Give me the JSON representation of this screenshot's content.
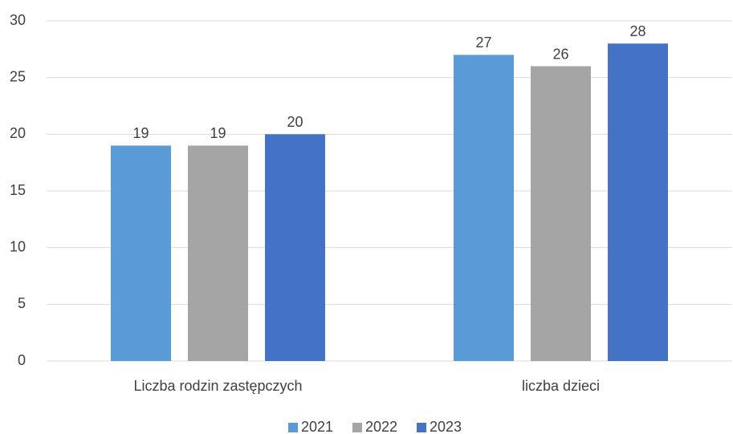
{
  "chart_data": {
    "type": "bar",
    "categories": [
      "Liczba rodzin zastępczych",
      "liczba dzieci"
    ],
    "series": [
      {
        "name": "2021",
        "color": "#5b9bd5",
        "values": [
          19,
          27
        ]
      },
      {
        "name": "2022",
        "color": "#a5a5a5",
        "values": [
          19,
          26
        ]
      },
      {
        "name": "2023",
        "color": "#4472c4",
        "values": [
          20,
          28
        ]
      }
    ],
    "ylim": [
      0,
      30
    ],
    "yticks": [
      0,
      5,
      10,
      15,
      20,
      25,
      30
    ],
    "grid": true,
    "legend": "bottom"
  }
}
